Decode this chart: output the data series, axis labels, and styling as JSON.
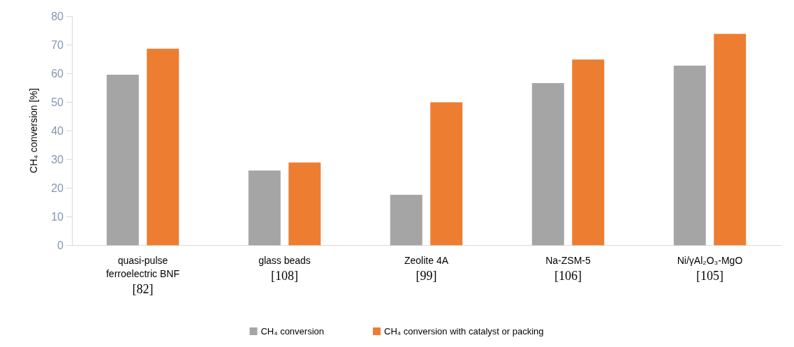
{
  "chart_data": {
    "type": "bar",
    "ylabel": "CH₄ conversion [%]",
    "categories": [
      "quasi-pulse\nferroelectric BNF\n[82]",
      "glass beads\n[108]",
      "Zeolite 4A\n[99]",
      "Na-ZSM-5\n[106]",
      "Ni/γAl₂O₃-MgO\n[105]"
    ],
    "series": [
      {
        "name": "CH₄ conversion",
        "color": "#a5a5a5",
        "values": [
          59.5,
          26.1,
          17.6,
          56.6,
          62.7
        ]
      },
      {
        "name": "CH₄ conversion with catalyst or packing",
        "color": "#ed7d31",
        "values": [
          68.6,
          28.9,
          49.9,
          64.8,
          73.8
        ]
      }
    ],
    "ylim": [
      0,
      80
    ],
    "yticks": [
      0,
      10,
      20,
      30,
      40,
      50,
      60,
      70,
      80
    ],
    "grid": false,
    "legend": "bottom"
  }
}
